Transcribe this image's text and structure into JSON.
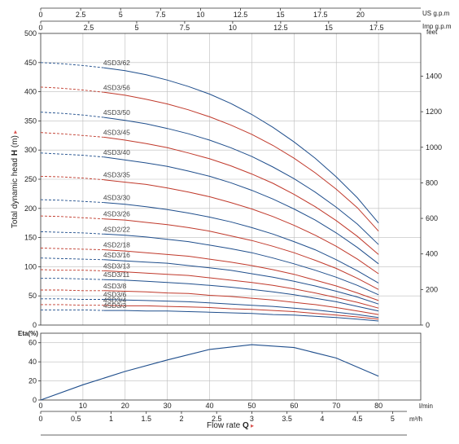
{
  "colors": {
    "blue": "#1f4e8c",
    "red": "#c0392b",
    "accent": "#d9534f"
  },
  "chart_data": [
    {
      "type": "line",
      "ylabel_prefix": "Total dynamic head ",
      "ylabel_symbol": "H",
      "ylabel_unit": " (m)",
      "ylim": [
        0,
        500
      ],
      "yticks": [
        0,
        50,
        100,
        150,
        200,
        250,
        300,
        350,
        400,
        450,
        500
      ],
      "xlim_lmin": [
        0,
        90
      ],
      "feet_label": "feet",
      "feet_ticks": [
        0,
        200,
        400,
        600,
        800,
        1000,
        1200,
        1400
      ],
      "usgpm_label": "US g.p.m",
      "usgpm_ticks": [
        "0",
        "2.5",
        "5",
        "7.5",
        "10",
        "12.5",
        "15",
        "17.5",
        "20"
      ],
      "impgpm_label": "Imp g.p.m",
      "impgpm_ticks": [
        "0",
        "2.5",
        "5",
        "7.5",
        "10",
        "12.5",
        "15",
        "17.5"
      ],
      "grid": true,
      "x_flow_lmin": [
        0,
        5,
        10,
        15,
        20,
        25,
        30,
        35,
        40,
        45,
        50,
        55,
        60,
        65,
        70,
        75,
        80
      ],
      "series": [
        {
          "name": "4SD3/62",
          "color": "blue",
          "head": [
            450,
            448,
            445,
            441,
            436,
            429,
            420,
            409,
            396,
            380,
            361,
            339,
            314,
            286,
            254,
            218,
            175
          ]
        },
        {
          "name": "4SD3/56",
          "color": "red",
          "head": [
            408,
            406,
            403,
            399,
            394,
            387,
            379,
            369,
            357,
            343,
            327,
            308,
            286,
            261,
            233,
            201,
            161
          ]
        },
        {
          "name": "4SD3/50",
          "color": "blue",
          "head": [
            365,
            363,
            360,
            356,
            351,
            345,
            337,
            328,
            317,
            304,
            289,
            271,
            251,
            228,
            202,
            173,
            138
          ]
        },
        {
          "name": "4SD3/45",
          "color": "red",
          "head": [
            330,
            328,
            325,
            322,
            317,
            311,
            304,
            295,
            285,
            273,
            259,
            243,
            224,
            203,
            179,
            152,
            121
          ]
        },
        {
          "name": "4SD3/40",
          "color": "blue",
          "head": [
            295,
            293,
            291,
            288,
            283,
            278,
            272,
            264,
            255,
            244,
            231,
            216,
            199,
            180,
            158,
            133,
            105
          ]
        },
        {
          "name": "4SD3/35",
          "color": "red",
          "head": [
            255,
            254,
            252,
            249,
            245,
            241,
            235,
            228,
            220,
            210,
            199,
            186,
            171,
            154,
            135,
            113,
            88
          ]
        },
        {
          "name": "4SD3/30",
          "color": "blue",
          "head": [
            215,
            214,
            212,
            210,
            207,
            203,
            198,
            192,
            185,
            177,
            167,
            156,
            143,
            129,
            112,
            93,
            72
          ]
        },
        {
          "name": "4SD3/26",
          "color": "red",
          "head": [
            187,
            186,
            184,
            182,
            180,
            176,
            172,
            167,
            161,
            153,
            145,
            135,
            124,
            111,
            97,
            80,
            61
          ]
        },
        {
          "name": "4SD2/22",
          "color": "blue",
          "head": [
            160,
            159,
            158,
            156,
            154,
            151,
            147,
            143,
            137,
            131,
            124,
            115,
            105,
            94,
            82,
            68,
            52
          ]
        },
        {
          "name": "4SD2/18",
          "color": "red",
          "head": [
            132,
            131,
            130,
            129,
            127,
            124,
            121,
            118,
            113,
            108,
            102,
            95,
            87,
            77,
            67,
            55,
            42
          ]
        },
        {
          "name": "4SD3/16",
          "color": "blue",
          "head": [
            115,
            114,
            113,
            112,
            110,
            108,
            106,
            102,
            98,
            94,
            88,
            82,
            75,
            67,
            58,
            48,
            36
          ]
        },
        {
          "name": "4SD3/13",
          "color": "red",
          "head": [
            95,
            94,
            94,
            93,
            91,
            89,
            87,
            85,
            81,
            77,
            73,
            68,
            62,
            55,
            47,
            39,
            29
          ]
        },
        {
          "name": "4SD3/11",
          "color": "blue",
          "head": [
            80,
            80,
            79,
            78,
            77,
            75,
            73,
            71,
            68,
            65,
            61,
            57,
            52,
            46,
            40,
            32,
            24
          ]
        },
        {
          "name": "4SD3/8",
          "color": "red",
          "head": [
            60,
            60,
            59,
            59,
            58,
            57,
            55,
            54,
            51,
            49,
            46,
            43,
            39,
            35,
            30,
            24,
            18
          ]
        },
        {
          "name": "4SD3/6",
          "color": "blue",
          "head": [
            45,
            45,
            44,
            44,
            43,
            42,
            41,
            40,
            38,
            36,
            34,
            32,
            29,
            26,
            22,
            18,
            13
          ]
        },
        {
          "name": "4SD3/4",
          "color": "red",
          "head": [
            35,
            35,
            34,
            34,
            33,
            33,
            32,
            31,
            30,
            28,
            27,
            25,
            23,
            20,
            17,
            14,
            10
          ]
        },
        {
          "name": "4SD3/3",
          "color": "blue",
          "head": [
            26,
            26,
            26,
            25,
            25,
            24,
            24,
            23,
            22,
            21,
            20,
            18,
            17,
            15,
            13,
            10,
            7
          ]
        }
      ]
    },
    {
      "type": "line",
      "ylabel": "Eta(%)",
      "ylim": [
        0,
        70
      ],
      "yticks": [
        0,
        20,
        40,
        60
      ],
      "x_lmin_label": "l/min",
      "x_lmin_ticks": [
        0,
        10,
        20,
        30,
        40,
        50,
        60,
        70,
        80
      ],
      "x_m3h_label": "m³/h",
      "x_m3h_ticks": [
        "0",
        "0.5",
        "1",
        "1.5",
        "2",
        "2.5",
        "3",
        "3.5",
        "4",
        "4.5",
        "5"
      ],
      "xlabel_prefix": "Flow rate ",
      "xlabel_symbol": "Q",
      "grid": true,
      "series": [
        {
          "x": [
            0,
            10,
            20,
            30,
            40,
            50,
            60,
            70,
            80
          ],
          "y": [
            0,
            16,
            30,
            42,
            53,
            58,
            55,
            44,
            25
          ]
        }
      ]
    }
  ]
}
